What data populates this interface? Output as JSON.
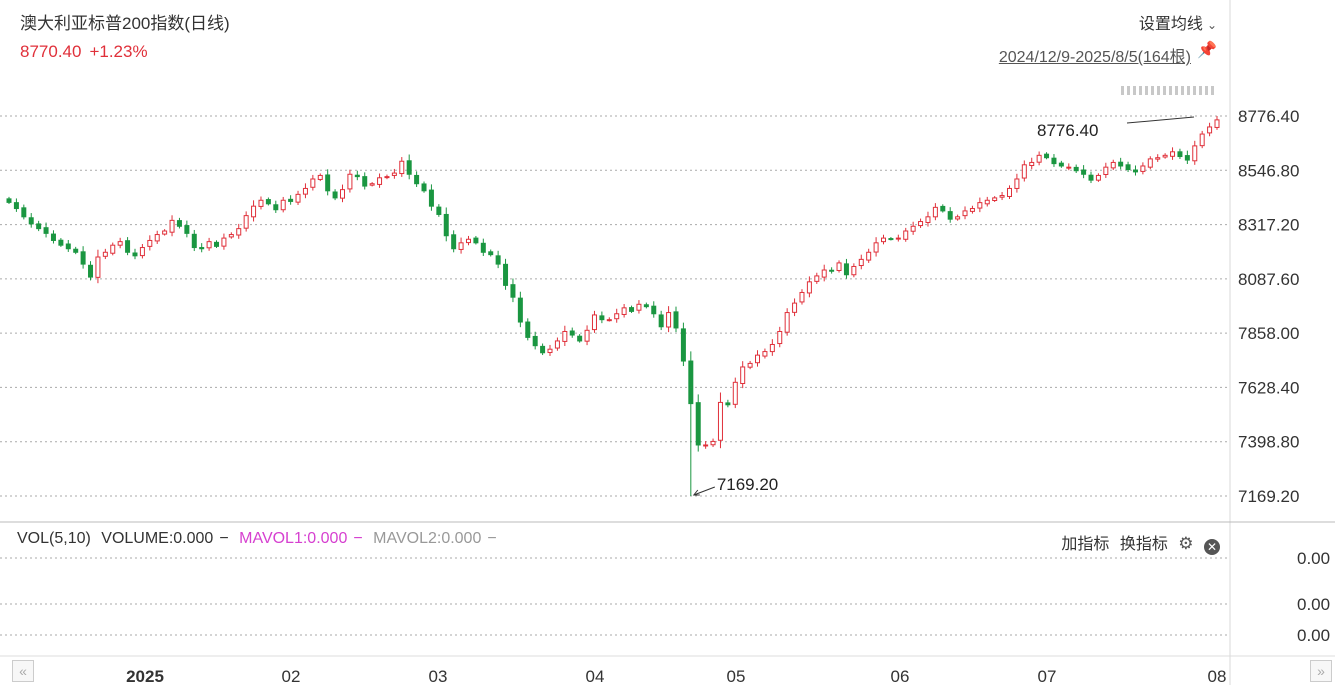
{
  "header": {
    "title": "澳大利亚标普200指数(日线)",
    "price": "8770.40",
    "change": "+1.23%",
    "ma_setting": "设置均线",
    "range": "2024/12/9-2025/8/5(164根)"
  },
  "volume_panel": {
    "name": "VOL(5,10)",
    "volume": "VOLUME:0.000",
    "mavol1": "MAVOL1:0.000",
    "mavol2": "MAVOL2:0.000",
    "add_indicator": "加指标",
    "switch_indicator": "换指标",
    "ticks": [
      "0.00",
      "0.00",
      "0.00"
    ]
  },
  "colors": {
    "up": "#e0303a",
    "down": "#1a9641",
    "grid": "#aaaaaa"
  },
  "chart_data": {
    "type": "candlestick",
    "y_ticks": [
      "8776.40",
      "8546.80",
      "8317.20",
      "8087.60",
      "7858.00",
      "7628.40",
      "7398.80",
      "7169.20"
    ],
    "x_ticks": [
      "2025",
      "02",
      "03",
      "04",
      "05",
      "06",
      "07",
      "08"
    ],
    "ylim": [
      7169.2,
      8776.4
    ],
    "annotations": {
      "max": "8776.40",
      "min": "7169.20"
    },
    "closes": [
      8411,
      8385,
      8350,
      8320,
      8300,
      8280,
      8250,
      8230,
      8215,
      8200,
      8150,
      8095,
      8180,
      8200,
      8230,
      8245,
      8200,
      8185,
      8220,
      8250,
      8275,
      8290,
      8335,
      8310,
      8280,
      8220,
      8215,
      8245,
      8225,
      8260,
      8275,
      8300,
      8355,
      8395,
      8420,
      8405,
      8380,
      8420,
      8415,
      8445,
      8470,
      8510,
      8525,
      8460,
      8430,
      8465,
      8530,
      8520,
      8480,
      8490,
      8515,
      8520,
      8535,
      8585,
      8530,
      8490,
      8460,
      8395,
      8360,
      8270,
      8215,
      8240,
      8255,
      8240,
      8200,
      8190,
      8150,
      8060,
      8010,
      7905,
      7840,
      7805,
      7775,
      7790,
      7825,
      7865,
      7850,
      7825,
      7870,
      7935,
      7915,
      7915,
      7940,
      7965,
      7950,
      7980,
      7970,
      7940,
      7885,
      7945,
      7880,
      7740,
      7560,
      7385,
      7385,
      7400,
      7565,
      7555,
      7650,
      7715,
      7730,
      7765,
      7780,
      7810,
      7865,
      7945,
      7985,
      8030,
      8075,
      8100,
      8125,
      8120,
      8155,
      8105,
      8140,
      8170,
      8200,
      8240,
      8260,
      8255,
      8260,
      8290,
      8310,
      8330,
      8350,
      8390,
      8375,
      8340,
      8350,
      8375,
      8385,
      8410,
      8420,
      8430,
      8440,
      8470,
      8510,
      8570,
      8580,
      8610,
      8600,
      8575,
      8565,
      8560,
      8545,
      8530,
      8505,
      8525,
      8560,
      8580,
      8565,
      8550,
      8540,
      8565,
      8595,
      8600,
      8610,
      8625,
      8605,
      8590,
      8650,
      8700,
      8730,
      8760
    ]
  }
}
